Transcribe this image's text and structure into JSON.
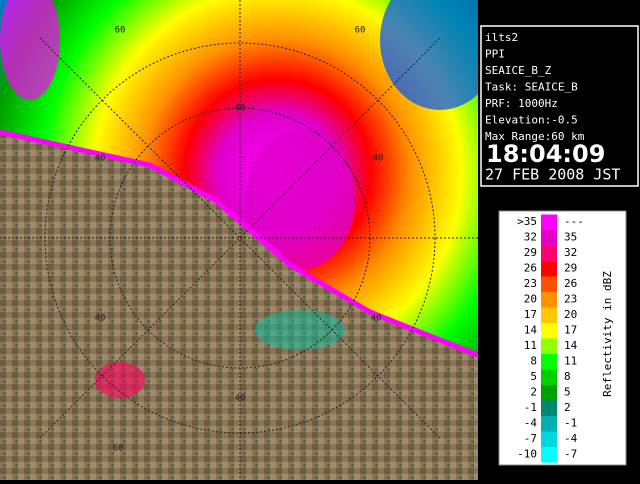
{
  "info": {
    "lines": [
      "ilts2",
      "PPI",
      "SEAICE_B_Z",
      "Task: SEAICE_B",
      "PRF: 1000Hz",
      "Elevation:-0.5",
      "Max Range:60 km"
    ],
    "time": "18:04:09",
    "date": "27 FEB 2008 JST"
  },
  "legend": {
    "title": "Reflectivity in dBZ",
    "rows": [
      {
        "low": ">35",
        "high": "---",
        "color": "#ff00ff"
      },
      {
        "low": "32",
        "high": "35",
        "color": "#e000c8"
      },
      {
        "low": "29",
        "high": "32",
        "color": "#ff0070"
      },
      {
        "low": "26",
        "high": "29",
        "color": "#ff0000"
      },
      {
        "low": "23",
        "high": "26",
        "color": "#ff5000"
      },
      {
        "low": "20",
        "high": "23",
        "color": "#ff9000"
      },
      {
        "low": "17",
        "high": "20",
        "color": "#ffc800"
      },
      {
        "low": "14",
        "high": "17",
        "color": "#ffff00"
      },
      {
        "low": "11",
        "high": "14",
        "color": "#90ff00"
      },
      {
        "low": "8",
        "high": "11",
        "color": "#00ff00"
      },
      {
        "low": "5",
        "high": "8",
        "color": "#00d000"
      },
      {
        "low": "2",
        "high": "5",
        "color": "#00a000"
      },
      {
        "low": "-1",
        "high": "2",
        "color": "#008870"
      },
      {
        "low": "-4",
        "high": "-1",
        "color": "#00b0b0"
      },
      {
        "low": "-7",
        "high": "-4",
        "color": "#00d8e0"
      },
      {
        "low": "-10",
        "high": "-7",
        "color": "#00ffff"
      }
    ]
  },
  "map": {
    "range_labels": [
      "60",
      "60",
      "40",
      "40",
      "40",
      "40",
      "40",
      "40",
      "60"
    ]
  }
}
